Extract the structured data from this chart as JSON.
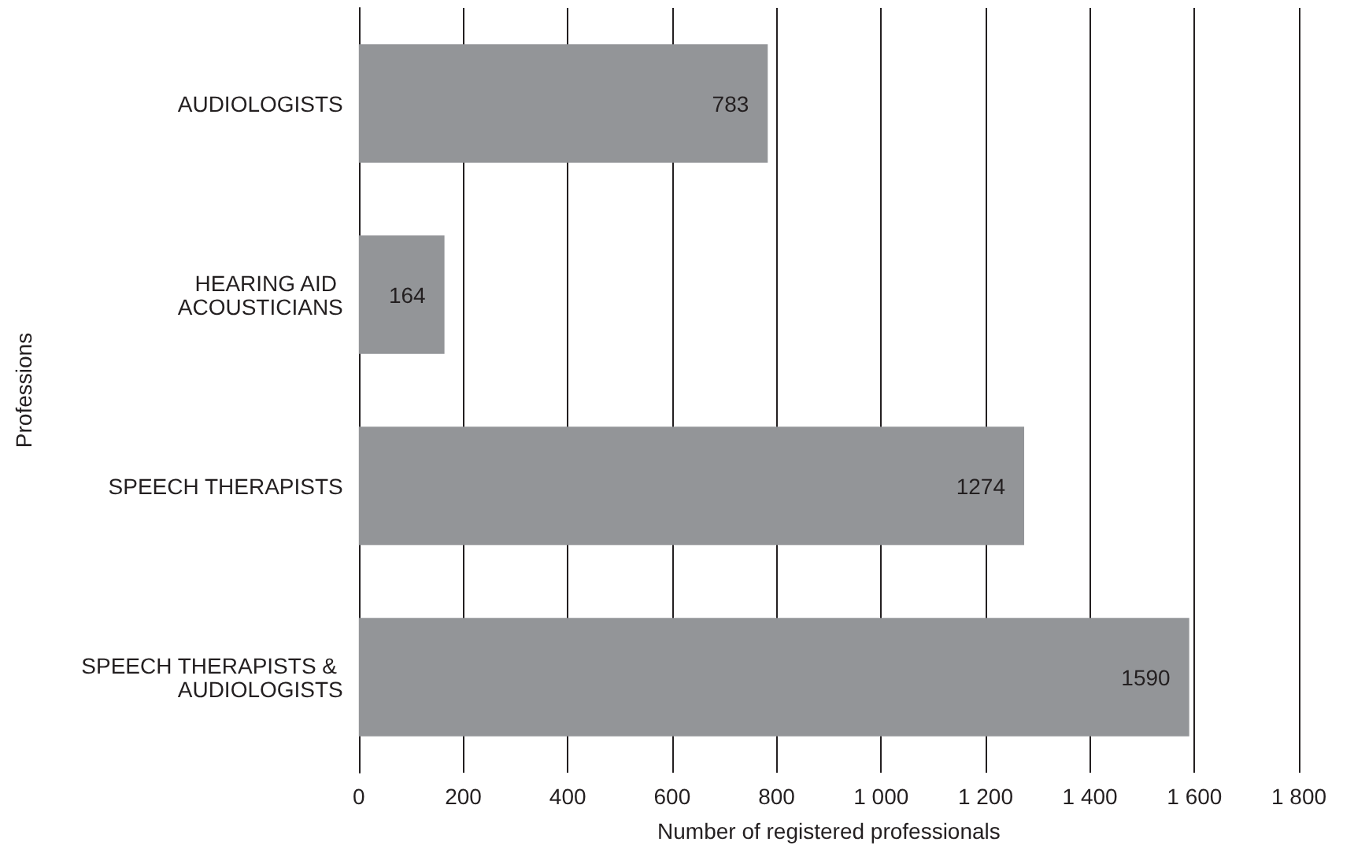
{
  "chart_data": {
    "type": "bar",
    "orientation": "horizontal",
    "categories": [
      "AUDIOLOGISTS",
      "HEARING AID ACOUSTICIANS",
      "SPEECH THERAPISTS",
      "SPEECH THERAPISTS & AUDIOLOGISTS"
    ],
    "values": [
      783,
      164,
      1274,
      1590
    ],
    "color": "#939598",
    "xlim": [
      0,
      1800
    ],
    "xticks": [
      0,
      200,
      400,
      600,
      800,
      {
        "value": 1000,
        "label": "1 000"
      },
      {
        "value": 1200,
        "label": "1 200"
      },
      {
        "value": 1400,
        "label": "1 400"
      },
      {
        "value": 1600,
        "label": "1 600"
      },
      {
        "value": 1800,
        "label": "1 800"
      }
    ],
    "xlabel": "Number of registered professionals",
    "ylabel": "Professions",
    "grid": "x",
    "data_labels": true
  }
}
